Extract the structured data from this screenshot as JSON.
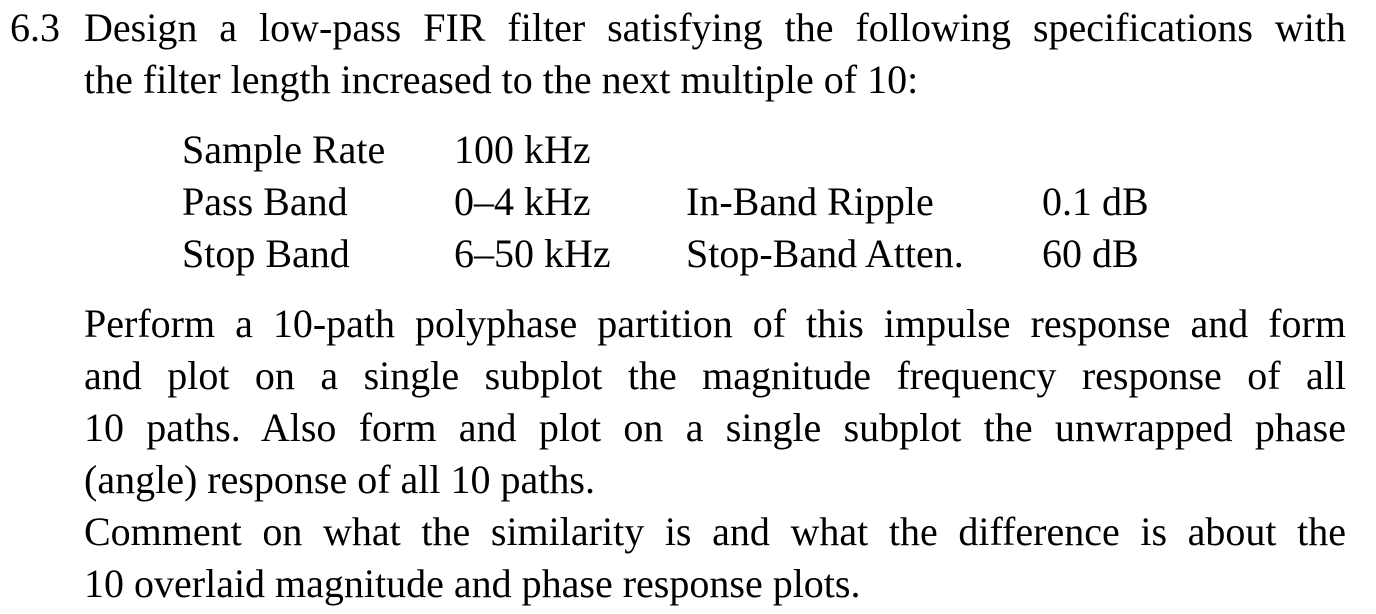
{
  "problem": {
    "number": "6.3",
    "intro_lines": [
      "Design a low-pass FIR filter satisfying the following specifications with",
      "the filter length increased to the next multiple of 10:"
    ]
  },
  "specs": {
    "rows": [
      {
        "label": "Sample Rate",
        "value": "100 kHz",
        "label2": "",
        "value2": ""
      },
      {
        "label": "Pass Band",
        "value": "0–4 kHz",
        "label2": "In-Band Ripple",
        "value2": "0.1 dB"
      },
      {
        "label": "Stop Band",
        "value": "6–50 kHz",
        "label2": "Stop-Band Atten.",
        "value2": "60 dB"
      }
    ]
  },
  "instructions": {
    "lines": [
      "Perform a 10-path polyphase partition of this impulse response and form",
      "and plot on a single subplot the magnitude frequency response of all",
      "10 paths. Also form and plot on a single subplot the unwrapped phase",
      "(angle) response of all 10 paths.",
      "Comment on what the similarity is and what the difference is about the",
      "10 overlaid magnitude and phase response plots."
    ]
  }
}
